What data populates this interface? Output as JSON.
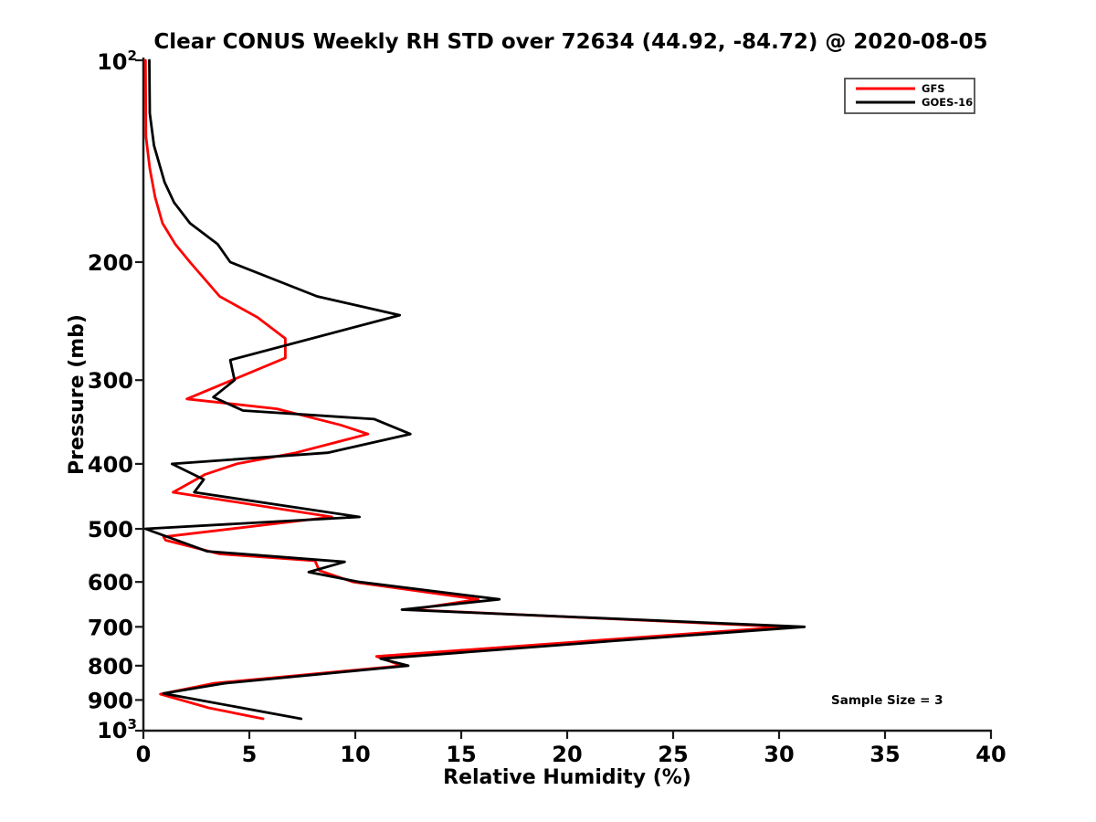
{
  "title": "Clear CONUS Weekly RH STD over 72634 (44.92, -84.72) @ 2020-08-05",
  "axes": {
    "xlabel": "Relative Humidity (%)",
    "ylabel": "Pressure (mb)",
    "x_ticks": [
      0,
      5,
      10,
      15,
      20,
      25,
      30,
      35,
      40
    ],
    "y_ticks": [
      200,
      300,
      400,
      500,
      600,
      700,
      800,
      900
    ],
    "y_top_base": "10",
    "y_top_exp": "2",
    "y_bottom_base": "10",
    "y_bottom_exp": "3",
    "spine_color": "#1a1a1a"
  },
  "legend": {
    "entries": [
      {
        "label": "GFS",
        "color": "#ff0000"
      },
      {
        "label": "GOES-16",
        "color": "#000000"
      }
    ]
  },
  "annotation": "Sample Size = 3",
  "chart_data": {
    "type": "line",
    "title": "Clear CONUS Weekly RH STD over 72634 (44.92, -84.72) @ 2020-08-05",
    "xlabel": "Relative Humidity (%)",
    "ylabel": "Pressure (mb)",
    "xlim": [
      0,
      40
    ],
    "ylim_mb": [
      100,
      1000
    ],
    "y_scale": "log-inverted",
    "grid": false,
    "legend_position": "upper right",
    "sample_size": 3,
    "series": [
      {
        "name": "GFS",
        "color": "#ff0000",
        "points_rh_pressure": [
          [
            0.1,
            100
          ],
          [
            0.12,
            130
          ],
          [
            0.3,
            145
          ],
          [
            0.55,
            160
          ],
          [
            0.9,
            175
          ],
          [
            1.5,
            188
          ],
          [
            2.2,
            200
          ],
          [
            3.6,
            225
          ],
          [
            5.4,
            242
          ],
          [
            6.7,
            260
          ],
          [
            6.7,
            278
          ],
          [
            2.05,
            320
          ],
          [
            6.3,
            331
          ],
          [
            9.3,
            350
          ],
          [
            10.6,
            361
          ],
          [
            7.2,
            385
          ],
          [
            4.4,
            400
          ],
          [
            2.9,
            415
          ],
          [
            1.4,
            441
          ],
          [
            8.9,
            480
          ],
          [
            0.95,
            514
          ],
          [
            1.05,
            520
          ],
          [
            3.6,
            545
          ],
          [
            8.1,
            558
          ],
          [
            8.3,
            577
          ],
          [
            9.9,
            600
          ],
          [
            15.8,
            637
          ],
          [
            12.6,
            660
          ],
          [
            30.3,
            700
          ],
          [
            11.0,
            775
          ],
          [
            12.2,
            800
          ],
          [
            3.3,
            850
          ],
          [
            0.8,
            882
          ],
          [
            3.1,
            925
          ],
          [
            5.65,
            960
          ]
        ]
      },
      {
        "name": "GOES-16",
        "color": "#000000",
        "points_rh_pressure": [
          [
            0.28,
            100
          ],
          [
            0.3,
            120
          ],
          [
            0.5,
            134
          ],
          [
            1.0,
            152
          ],
          [
            1.45,
            163
          ],
          [
            2.2,
            175
          ],
          [
            3.5,
            188
          ],
          [
            4.1,
            200
          ],
          [
            8.2,
            225
          ],
          [
            12.1,
            240
          ],
          [
            4.1,
            280
          ],
          [
            4.3,
            300
          ],
          [
            3.3,
            318
          ],
          [
            4.7,
            333
          ],
          [
            10.9,
            343
          ],
          [
            12.6,
            361
          ],
          [
            8.7,
            385
          ],
          [
            1.35,
            400
          ],
          [
            2.85,
            422
          ],
          [
            2.4,
            441
          ],
          [
            10.2,
            480
          ],
          [
            0.1,
            500
          ],
          [
            0.4,
            504
          ],
          [
            3.0,
            540
          ],
          [
            9.5,
            560
          ],
          [
            7.8,
            580
          ],
          [
            10.2,
            600
          ],
          [
            16.8,
            637
          ],
          [
            12.2,
            660
          ],
          [
            31.2,
            700
          ],
          [
            22.1,
            735
          ],
          [
            11.2,
            781
          ],
          [
            12.5,
            800
          ],
          [
            3.8,
            850
          ],
          [
            0.95,
            880
          ],
          [
            7.45,
            960
          ]
        ]
      }
    ]
  }
}
